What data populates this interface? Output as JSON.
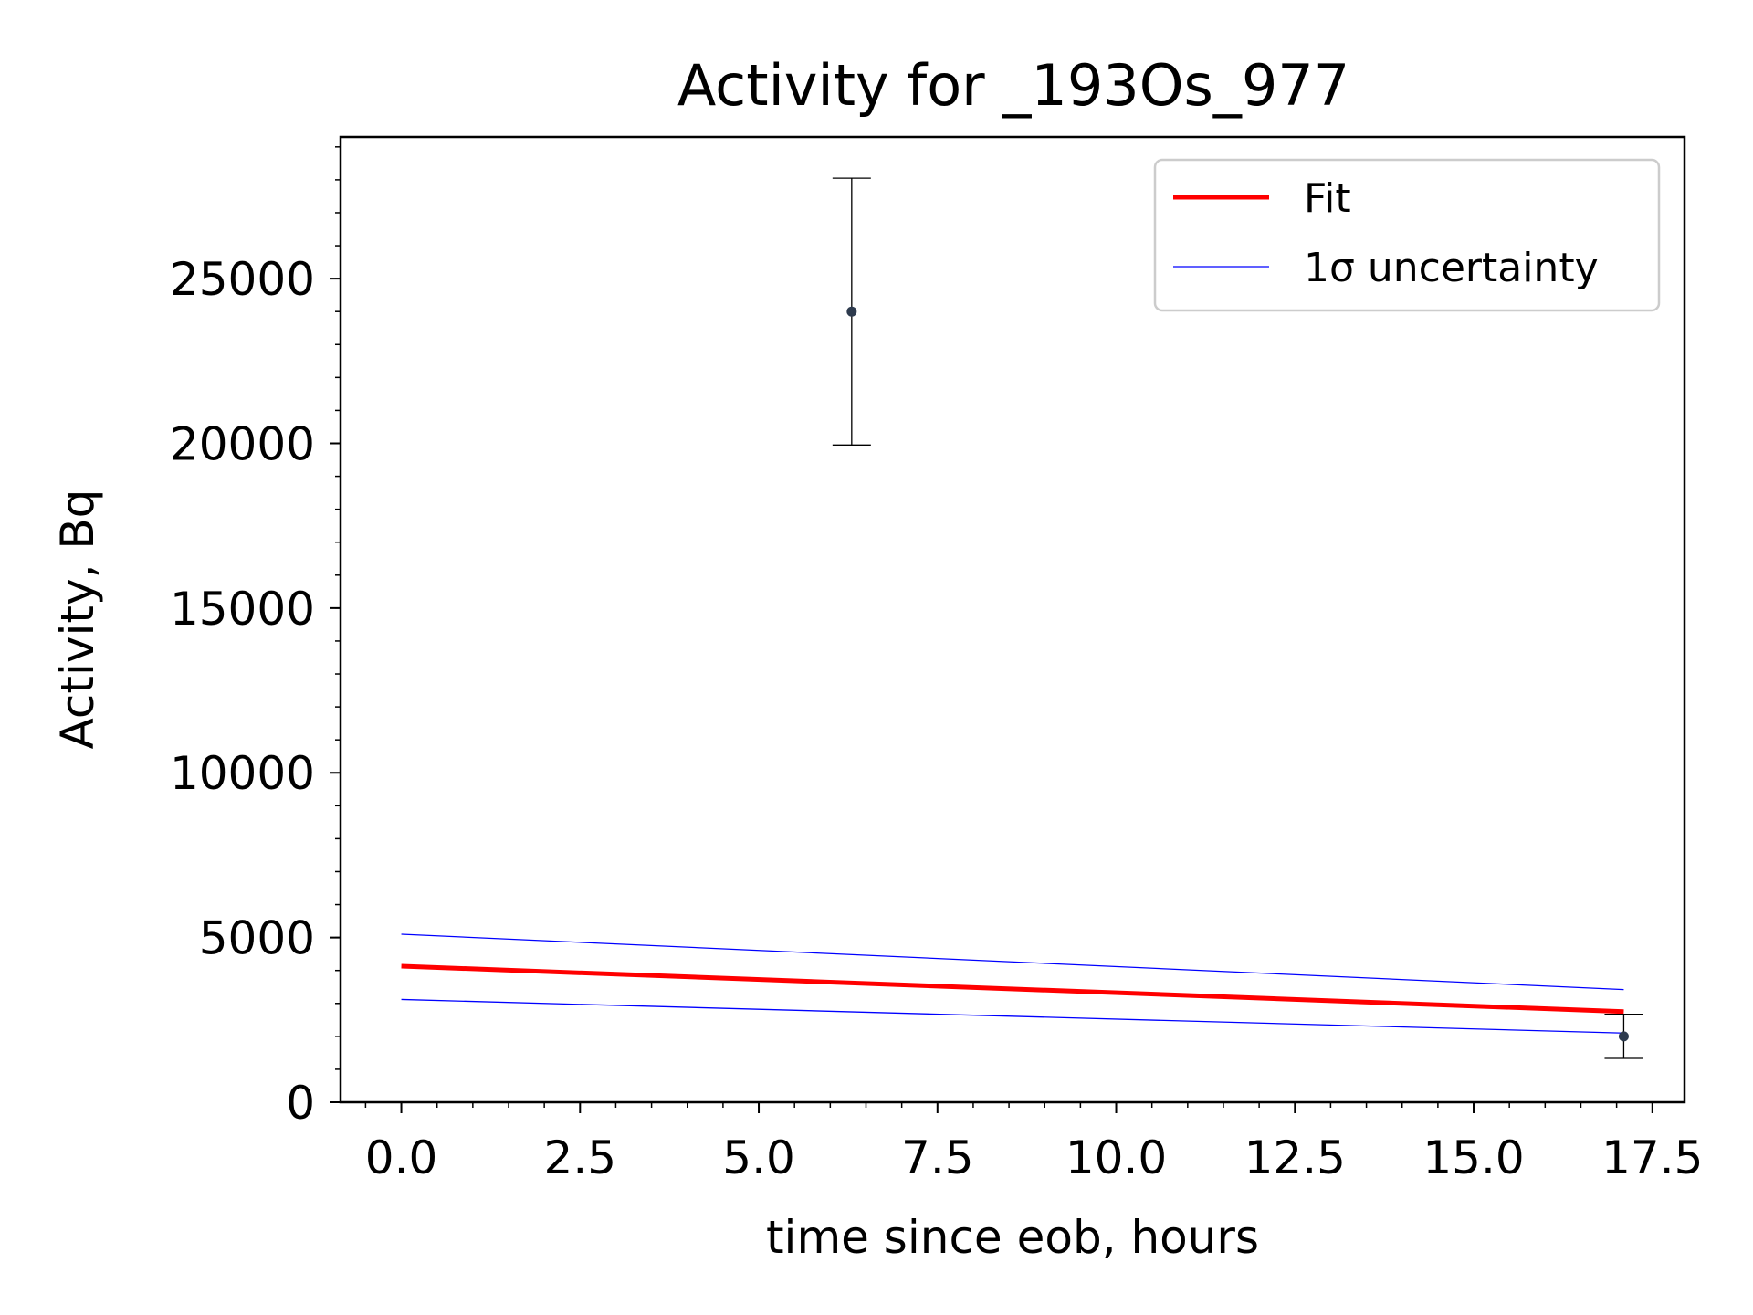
{
  "chart_data": {
    "type": "line",
    "title": "Activity for _193Os_977",
    "xlabel": "time since eob, hours",
    "ylabel": "Activity, Bq",
    "xlim": [
      -0.85,
      17.95
    ],
    "ylim": [
      0,
      29300
    ],
    "xticks": [
      "0.0",
      "2.5",
      "5.0",
      "7.5",
      "10.0",
      "12.5",
      "15.0",
      "17.5"
    ],
    "yticks": [
      "0",
      "5000",
      "10000",
      "15000",
      "20000",
      "25000"
    ],
    "grid": false,
    "legend_position": "top-right",
    "series": [
      {
        "name": "Fit",
        "kind": "line",
        "color": "#ff0000",
        "x": [
          0.0,
          17.1
        ],
        "y": [
          4130,
          2750
        ]
      },
      {
        "name": "1σ uncertainty",
        "kind": "line",
        "color": "#0000ff",
        "x": [
          0.0,
          17.1
        ],
        "y": [
          5100,
          3420
        ]
      },
      {
        "name": "",
        "kind": "line",
        "color": "#0000ff",
        "x": [
          0.0,
          17.1
        ],
        "y": [
          3120,
          2100
        ]
      },
      {
        "name": "",
        "kind": "errorbar",
        "color": "#2e3b4e",
        "x": [
          6.3,
          17.1
        ],
        "y": [
          24000,
          2000
        ],
        "yerr": [
          4050,
          670
        ]
      }
    ]
  }
}
